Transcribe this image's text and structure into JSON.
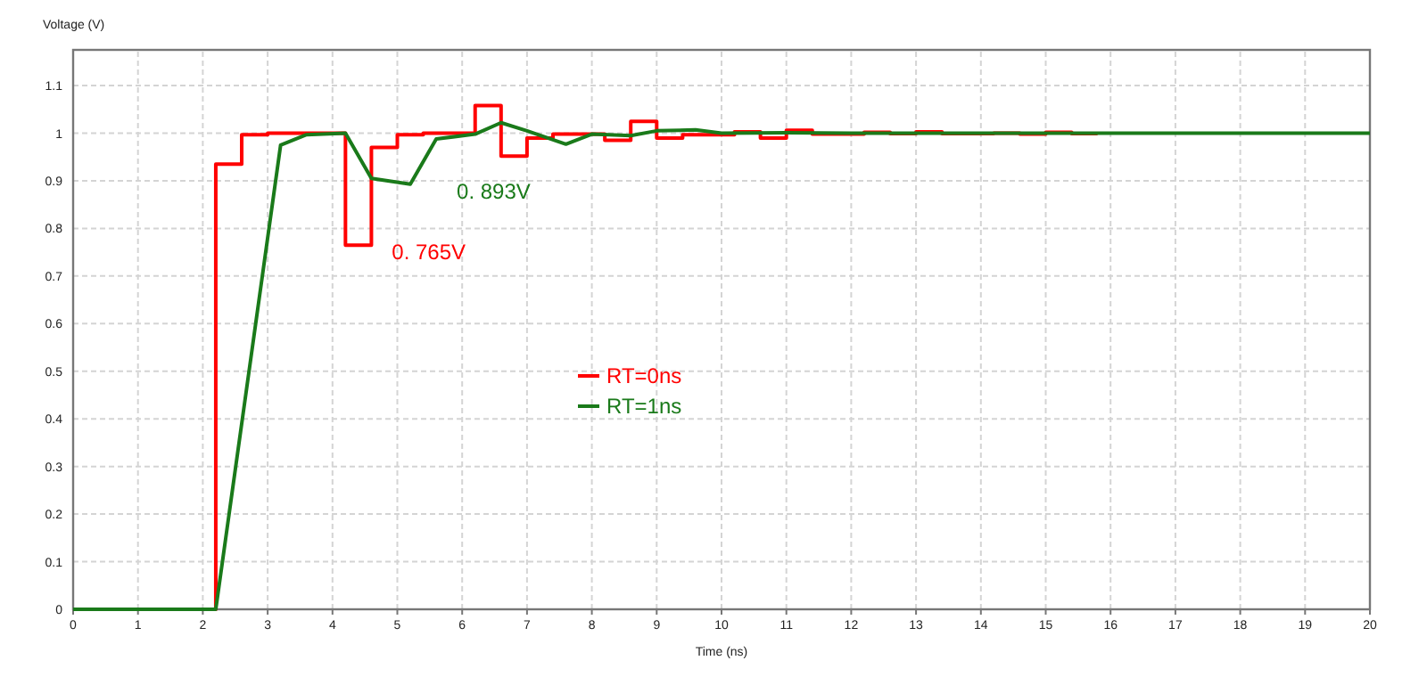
{
  "chart_data": {
    "type": "line",
    "xlabel": "Time (ns)",
    "ylabel": "Voltage (V)",
    "xlim": [
      0,
      20
    ],
    "ylim": [
      0,
      1.175
    ],
    "xticks": [
      0,
      1,
      2,
      3,
      4,
      5,
      6,
      7,
      8,
      9,
      10,
      11,
      12,
      13,
      14,
      15,
      16,
      17,
      18,
      19,
      20
    ],
    "yticks": [
      0,
      0.1,
      0.2,
      0.3,
      0.4,
      0.5,
      0.6,
      0.7,
      0.8,
      0.9,
      1,
      1.1
    ],
    "grid": true,
    "legend": "center",
    "line_style": "solid",
    "marker": "none",
    "series": [
      {
        "name": "RT=0ns",
        "type": "step",
        "color": "#ff0000",
        "x": [
          0,
          2.2,
          2.6,
          3.0,
          4.2,
          4.6,
          5.0,
          5.4,
          6.2,
          6.6,
          7.0,
          7.4,
          8.2,
          8.6,
          9.0,
          9.4,
          10.2,
          10.6,
          11.0,
          11.4,
          12.2,
          12.6,
          13.0,
          13.4,
          14.2,
          14.6,
          15.0,
          15.4,
          15.8
        ],
        "values": [
          0,
          0.935,
          0.997,
          1.0,
          0.765,
          0.97,
          0.997,
          1.0,
          1.058,
          0.952,
          0.99,
          0.998,
          0.985,
          1.025,
          0.99,
          0.997,
          1.003,
          0.99,
          1.006,
          0.998,
          1.002,
          0.999,
          1.003,
          0.999,
          1.0,
          0.998,
          1.002,
          0.999,
          0.999
        ]
      },
      {
        "name": "RT=1ns",
        "type": "line",
        "color": "#1a7a1a",
        "x": [
          0,
          2.2,
          3.2,
          3.6,
          4.2,
          4.6,
          5.2,
          5.6,
          6.2,
          6.6,
          7.0,
          7.6,
          8.0,
          8.6,
          9.0,
          9.6,
          10.0,
          11.0,
          12.0,
          13.0,
          14.0,
          20
        ],
        "values": [
          0,
          0,
          0.975,
          0.997,
          1.0,
          0.905,
          0.893,
          0.988,
          0.998,
          1.022,
          1.005,
          0.977,
          0.998,
          0.995,
          1.005,
          1.007,
          1.0,
          1.001,
          1.0,
          1.0,
          1.0,
          1.0
        ]
      }
    ],
    "annotations": [
      {
        "text": "0. 765V",
        "x": 4.2,
        "y": 0.765
      },
      {
        "text": "0. 893V",
        "x": 5.2,
        "y": 0.893
      }
    ]
  }
}
